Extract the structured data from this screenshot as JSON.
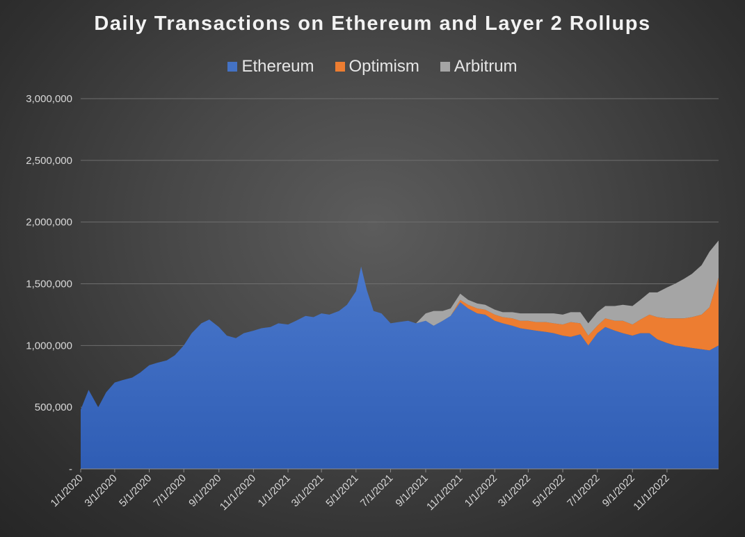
{
  "chart_data": {
    "type": "area",
    "stacked": true,
    "title": "Daily Transactions on Ethereum and Layer 2 Rollups",
    "xlabel": "",
    "ylabel": "",
    "ylim": [
      0,
      3000000
    ],
    "yticks": [
      0,
      500000,
      1000000,
      1500000,
      2000000,
      2500000,
      3000000
    ],
    "ytick_labels": [
      "-",
      "500,000",
      "1,000,000",
      "1,500,000",
      "2,000,000",
      "2,500,000",
      "3,000,000"
    ],
    "xlim": [
      "1/1/2020",
      "1/31/2023"
    ],
    "xtick_labels": [
      "1/1/2020",
      "3/1/2020",
      "5/1/2020",
      "7/1/2020",
      "9/1/2020",
      "11/1/2020",
      "1/1/2021",
      "3/1/2021",
      "5/1/2021",
      "7/1/2021",
      "9/1/2021",
      "11/1/2021",
      "1/1/2022",
      "3/1/2022",
      "5/1/2022",
      "7/1/2022",
      "9/1/2022",
      "11/1/2022"
    ],
    "grid": true,
    "legend_position": "top",
    "x": [
      "1/1/2020",
      "1/15/2020",
      "2/1/2020",
      "2/15/2020",
      "3/1/2020",
      "3/15/2020",
      "4/1/2020",
      "4/15/2020",
      "5/1/2020",
      "5/15/2020",
      "6/1/2020",
      "6/15/2020",
      "7/1/2020",
      "7/15/2020",
      "8/1/2020",
      "8/15/2020",
      "9/1/2020",
      "9/15/2020",
      "10/1/2020",
      "10/15/2020",
      "11/1/2020",
      "11/15/2020",
      "12/1/2020",
      "12/15/2020",
      "1/1/2021",
      "1/15/2021",
      "2/1/2021",
      "2/15/2021",
      "3/1/2021",
      "3/15/2021",
      "4/1/2021",
      "4/15/2021",
      "5/1/2021",
      "5/10/2021",
      "5/20/2021",
      "6/1/2021",
      "6/15/2021",
      "7/1/2021",
      "7/15/2021",
      "8/1/2021",
      "8/15/2021",
      "9/1/2021",
      "9/15/2021",
      "10/1/2021",
      "10/15/2021",
      "11/1/2021",
      "11/15/2021",
      "12/1/2021",
      "12/15/2021",
      "1/1/2022",
      "1/15/2022",
      "2/1/2022",
      "2/15/2022",
      "3/1/2022",
      "3/15/2022",
      "4/1/2022",
      "4/15/2022",
      "5/1/2022",
      "5/15/2022",
      "6/1/2022",
      "6/15/2022",
      "7/1/2022",
      "7/15/2022",
      "8/1/2022",
      "8/15/2022",
      "9/1/2022",
      "9/15/2022",
      "10/1/2022",
      "10/15/2022",
      "11/1/2022",
      "11/15/2022",
      "12/1/2022",
      "12/15/2022",
      "1/1/2023",
      "1/15/2023",
      "1/31/2023"
    ],
    "series": [
      {
        "name": "Ethereum",
        "color": "#4472c4",
        "values": [
          480000,
          640000,
          500000,
          620000,
          700000,
          720000,
          740000,
          780000,
          840000,
          860000,
          880000,
          920000,
          1000000,
          1100000,
          1180000,
          1210000,
          1150000,
          1080000,
          1060000,
          1100000,
          1120000,
          1140000,
          1150000,
          1180000,
          1170000,
          1200000,
          1240000,
          1230000,
          1260000,
          1250000,
          1280000,
          1330000,
          1440000,
          1640000,
          1450000,
          1280000,
          1260000,
          1180000,
          1190000,
          1200000,
          1180000,
          1200000,
          1160000,
          1200000,
          1240000,
          1350000,
          1300000,
          1260000,
          1250000,
          1200000,
          1180000,
          1160000,
          1140000,
          1130000,
          1120000,
          1110000,
          1100000,
          1080000,
          1070000,
          1090000,
          1000000,
          1100000,
          1150000,
          1120000,
          1100000,
          1080000,
          1100000,
          1100000,
          1050000,
          1020000,
          1000000,
          990000,
          980000,
          970000,
          960000,
          1000000
        ]
      },
      {
        "name": "Optimism",
        "color": "#ed7d31",
        "values": [
          0,
          0,
          0,
          0,
          0,
          0,
          0,
          0,
          0,
          0,
          0,
          0,
          0,
          0,
          0,
          0,
          0,
          0,
          0,
          0,
          0,
          0,
          0,
          0,
          0,
          0,
          0,
          0,
          0,
          0,
          0,
          0,
          0,
          0,
          0,
          0,
          0,
          0,
          0,
          0,
          0,
          0,
          0,
          0,
          0,
          20000,
          30000,
          40000,
          40000,
          50000,
          50000,
          60000,
          60000,
          70000,
          70000,
          80000,
          80000,
          90000,
          120000,
          90000,
          80000,
          60000,
          70000,
          80000,
          100000,
          90000,
          110000,
          150000,
          180000,
          200000,
          220000,
          230000,
          250000,
          280000,
          350000,
          550000
        ]
      },
      {
        "name": "Arbitrum",
        "color": "#a5a5a5",
        "values": [
          0,
          0,
          0,
          0,
          0,
          0,
          0,
          0,
          0,
          0,
          0,
          0,
          0,
          0,
          0,
          0,
          0,
          0,
          0,
          0,
          0,
          0,
          0,
          0,
          0,
          0,
          0,
          0,
          0,
          0,
          0,
          0,
          0,
          0,
          0,
          0,
          0,
          0,
          0,
          0,
          0,
          60000,
          120000,
          80000,
          60000,
          50000,
          40000,
          40000,
          40000,
          40000,
          40000,
          50000,
          60000,
          60000,
          70000,
          70000,
          80000,
          80000,
          80000,
          90000,
          100000,
          110000,
          100000,
          120000,
          130000,
          150000,
          160000,
          180000,
          200000,
          250000,
          280000,
          320000,
          350000,
          400000,
          450000,
          300000
        ]
      }
    ]
  }
}
